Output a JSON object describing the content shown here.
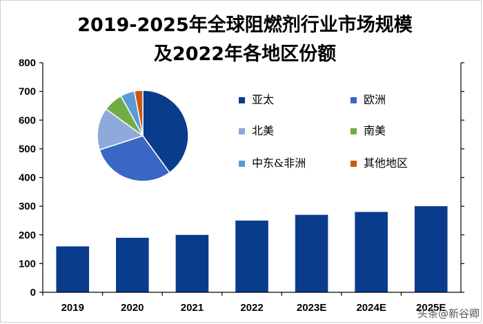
{
  "title_line1": "2019-2025年全球阻燃剂行业市场规模",
  "title_line2": "及2022年各地区份额",
  "watermark": "头条@新谷卿",
  "colors": {
    "bar": "#0a3c8c",
    "axis": "#000000"
  },
  "chart_data": [
    {
      "type": "bar",
      "categories": [
        "2019",
        "2020",
        "2021",
        "2022",
        "2023E",
        "2024E",
        "2025E"
      ],
      "values": [
        160,
        190,
        200,
        250,
        270,
        280,
        300
      ],
      "ylim": [
        0,
        800
      ],
      "yticks": [
        0,
        100,
        200,
        300,
        400,
        500,
        600,
        700,
        800
      ],
      "title": "",
      "xlabel": "",
      "ylabel": "",
      "grid": false
    },
    {
      "type": "pie",
      "legend_placement": "right",
      "slices": [
        {
          "label": "亚太",
          "value": 40,
          "color": "#0a3c8c"
        },
        {
          "label": "欧洲",
          "value": 30,
          "color": "#3a66c4"
        },
        {
          "label": "北美",
          "value": 15,
          "color": "#8ea9db"
        },
        {
          "label": "南美",
          "value": 7,
          "color": "#70ad47"
        },
        {
          "label": "中东&非洲",
          "value": 5,
          "color": "#5b9bd5"
        },
        {
          "label": "其他地区",
          "value": 3,
          "color": "#c55a11"
        }
      ]
    }
  ]
}
